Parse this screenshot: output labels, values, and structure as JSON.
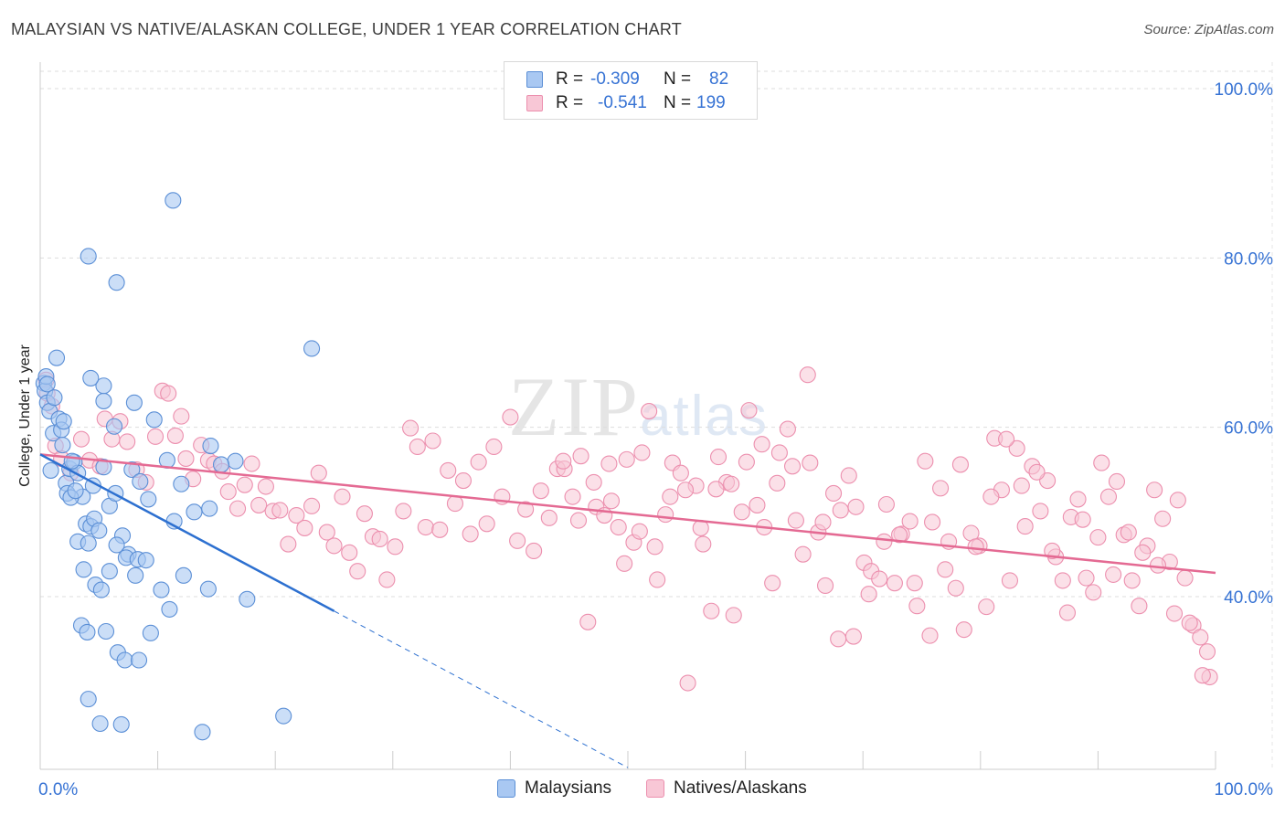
{
  "header": {
    "title": "MALAYSIAN VS NATIVE/ALASKAN COLLEGE, UNDER 1 YEAR CORRELATION CHART",
    "source": "Source: ZipAtlas.com"
  },
  "watermark": {
    "zip": "ZIP",
    "atlas": "atlas"
  },
  "legend": {
    "rows": [
      {
        "r_label": "R =",
        "r_value": "-0.309",
        "n_label": "N =",
        "n_value": "82",
        "color": "#7aa8e8"
      },
      {
        "r_label": "R =",
        "r_value": "-0.541",
        "n_label": "N =",
        "n_value": "199",
        "color": "#f4a6bf"
      }
    ]
  },
  "bottom_legend": {
    "malaysians": "Malaysians",
    "natives": "Natives/Alaskans"
  },
  "chart_data": {
    "type": "scatter",
    "title": "MALAYSIAN VS NATIVE/ALASKAN COLLEGE, UNDER 1 YEAR CORRELATION CHART",
    "xlabel": "",
    "ylabel": "College, Under 1 year",
    "xlim": [
      0,
      100
    ],
    "ylim": [
      22,
      102
    ],
    "x_tick_labels": [
      "0.0%",
      "100.0%"
    ],
    "y_ticks": [
      40,
      60,
      80,
      100
    ],
    "y_tick_labels": [
      "40.0%",
      "60.0%",
      "80.0%",
      "100.0%"
    ],
    "colors": {
      "malaysians_fill": "#a9c8f2",
      "malaysians_stroke": "#5b8fd6",
      "malaysians_line": "#2d70d0",
      "natives_fill": "#f8c7d6",
      "natives_stroke": "#ec8fae",
      "natives_line": "#e46a93"
    },
    "series": [
      {
        "name": "Malaysians",
        "r": -0.309,
        "n": 82,
        "trend": {
          "x0": 0,
          "y0": 56.8,
          "x1": 25,
          "y1": 38.3,
          "dash_to_x": 50
        },
        "points": [
          [
            0.3,
            65.2
          ],
          [
            0.4,
            64.3
          ],
          [
            0.5,
            66.0
          ],
          [
            0.6,
            62.9
          ],
          [
            0.8,
            61.9
          ],
          [
            1.1,
            59.3
          ],
          [
            1.4,
            68.2
          ],
          [
            1.6,
            61.0
          ],
          [
            1.8,
            59.7
          ],
          [
            2.0,
            60.7
          ],
          [
            0.9,
            54.9
          ],
          [
            2.2,
            53.4
          ],
          [
            2.5,
            55.1
          ],
          [
            2.9,
            55.9
          ],
          [
            3.2,
            54.6
          ],
          [
            3.6,
            51.8
          ],
          [
            3.9,
            48.6
          ],
          [
            4.3,
            48.3
          ],
          [
            4.6,
            49.2
          ],
          [
            5.0,
            47.8
          ],
          [
            2.3,
            52.2
          ],
          [
            2.6,
            51.7
          ],
          [
            3.0,
            52.5
          ],
          [
            4.5,
            53.1
          ],
          [
            5.4,
            55.3
          ],
          [
            5.9,
            50.7
          ],
          [
            6.4,
            52.2
          ],
          [
            7.0,
            47.2
          ],
          [
            7.5,
            45.0
          ],
          [
            8.1,
            42.5
          ],
          [
            3.2,
            46.5
          ],
          [
            3.7,
            43.2
          ],
          [
            4.1,
            46.3
          ],
          [
            4.7,
            41.4
          ],
          [
            5.2,
            40.8
          ],
          [
            5.9,
            43.0
          ],
          [
            6.5,
            46.1
          ],
          [
            7.3,
            44.6
          ],
          [
            8.3,
            44.4
          ],
          [
            9.0,
            44.3
          ],
          [
            3.5,
            36.6
          ],
          [
            4.0,
            35.8
          ],
          [
            5.6,
            35.9
          ],
          [
            6.6,
            33.4
          ],
          [
            7.2,
            32.5
          ],
          [
            8.4,
            32.5
          ],
          [
            9.4,
            35.7
          ],
          [
            10.3,
            40.8
          ],
          [
            11.0,
            38.5
          ],
          [
            12.2,
            42.5
          ],
          [
            4.1,
            27.9
          ],
          [
            5.1,
            25.0
          ],
          [
            6.9,
            24.9
          ],
          [
            13.8,
            24.0
          ],
          [
            20.7,
            25.9
          ],
          [
            14.3,
            40.9
          ],
          [
            17.6,
            39.7
          ],
          [
            13.1,
            50.0
          ],
          [
            14.4,
            50.4
          ],
          [
            16.6,
            56.0
          ],
          [
            10.8,
            56.1
          ],
          [
            11.4,
            48.9
          ],
          [
            12.0,
            53.3
          ],
          [
            14.5,
            57.8
          ],
          [
            15.4,
            55.6
          ],
          [
            9.7,
            60.9
          ],
          [
            8.0,
            62.9
          ],
          [
            6.3,
            60.1
          ],
          [
            5.4,
            63.1
          ],
          [
            5.4,
            64.9
          ],
          [
            4.3,
            65.8
          ],
          [
            4.1,
            80.2
          ],
          [
            6.5,
            77.1
          ],
          [
            11.3,
            86.8
          ],
          [
            23.1,
            69.3
          ],
          [
            0.6,
            65.1
          ],
          [
            1.2,
            63.5
          ],
          [
            1.9,
            57.9
          ],
          [
            2.7,
            56.0
          ],
          [
            7.8,
            55.0
          ],
          [
            8.5,
            53.6
          ],
          [
            9.2,
            51.5
          ]
        ]
      },
      {
        "name": "Natives/Alaskans",
        "r": -0.541,
        "n": 199,
        "trend": {
          "x0": 0,
          "y0": 56.8,
          "x1": 100,
          "y1": 42.8
        },
        "points": [
          [
            0.5,
            65.6
          ],
          [
            0.6,
            64.0
          ],
          [
            1.0,
            62.5
          ],
          [
            1.3,
            57.8
          ],
          [
            1.8,
            56.3
          ],
          [
            2.6,
            54.6
          ],
          [
            3.5,
            58.6
          ],
          [
            4.2,
            56.1
          ],
          [
            5.1,
            55.4
          ],
          [
            5.5,
            61.0
          ],
          [
            6.1,
            58.6
          ],
          [
            6.8,
            60.7
          ],
          [
            7.4,
            58.3
          ],
          [
            8.2,
            55.0
          ],
          [
            9.0,
            53.5
          ],
          [
            9.8,
            58.9
          ],
          [
            10.4,
            64.3
          ],
          [
            10.9,
            64.0
          ],
          [
            11.5,
            59.0
          ],
          [
            12.0,
            61.3
          ],
          [
            12.4,
            56.3
          ],
          [
            13.0,
            53.9
          ],
          [
            13.7,
            57.9
          ],
          [
            14.3,
            56.1
          ],
          [
            14.8,
            55.7
          ],
          [
            15.5,
            54.8
          ],
          [
            16.0,
            52.4
          ],
          [
            16.8,
            50.4
          ],
          [
            17.4,
            53.2
          ],
          [
            18.0,
            55.7
          ],
          [
            18.6,
            50.8
          ],
          [
            19.2,
            53.0
          ],
          [
            19.8,
            50.1
          ],
          [
            20.4,
            50.2
          ],
          [
            21.1,
            46.2
          ],
          [
            21.8,
            49.6
          ],
          [
            22.5,
            48.1
          ],
          [
            23.1,
            50.7
          ],
          [
            23.7,
            54.6
          ],
          [
            24.4,
            47.6
          ],
          [
            25.0,
            46.0
          ],
          [
            25.7,
            51.8
          ],
          [
            26.3,
            45.2
          ],
          [
            27.0,
            43.0
          ],
          [
            27.6,
            49.8
          ],
          [
            28.3,
            47.1
          ],
          [
            28.9,
            46.8
          ],
          [
            29.5,
            42.0
          ],
          [
            30.2,
            45.9
          ],
          [
            30.9,
            50.1
          ],
          [
            31.5,
            59.9
          ],
          [
            32.1,
            57.7
          ],
          [
            32.8,
            48.2
          ],
          [
            33.4,
            58.4
          ],
          [
            34.0,
            47.9
          ],
          [
            34.7,
            54.9
          ],
          [
            35.3,
            51.0
          ],
          [
            36.0,
            53.7
          ],
          [
            36.6,
            47.4
          ],
          [
            37.3,
            55.9
          ],
          [
            38.0,
            48.6
          ],
          [
            38.6,
            57.7
          ],
          [
            39.3,
            51.8
          ],
          [
            40.0,
            61.2
          ],
          [
            40.6,
            46.6
          ],
          [
            41.3,
            50.3
          ],
          [
            42.0,
            45.4
          ],
          [
            42.6,
            52.5
          ],
          [
            43.3,
            49.3
          ],
          [
            44.0,
            55.1
          ],
          [
            44.6,
            55.1
          ],
          [
            45.3,
            51.8
          ],
          [
            46.0,
            56.6
          ],
          [
            46.6,
            37.0
          ],
          [
            47.3,
            50.6
          ],
          [
            48.0,
            49.6
          ],
          [
            48.6,
            51.3
          ],
          [
            49.2,
            48.2
          ],
          [
            49.9,
            56.2
          ],
          [
            50.5,
            46.4
          ],
          [
            51.2,
            57.0
          ],
          [
            51.8,
            61.9
          ],
          [
            52.5,
            42.0
          ],
          [
            53.2,
            49.7
          ],
          [
            53.8,
            55.8
          ],
          [
            54.5,
            54.6
          ],
          [
            55.1,
            29.8
          ],
          [
            55.8,
            53.1
          ],
          [
            56.4,
            46.2
          ],
          [
            57.1,
            38.3
          ],
          [
            57.7,
            56.5
          ],
          [
            58.4,
            53.5
          ],
          [
            59.0,
            37.8
          ],
          [
            59.7,
            50.0
          ],
          [
            60.3,
            62.0
          ],
          [
            61.0,
            50.8
          ],
          [
            61.6,
            48.2
          ],
          [
            62.3,
            41.6
          ],
          [
            62.9,
            57.0
          ],
          [
            63.6,
            59.8
          ],
          [
            64.3,
            49.0
          ],
          [
            64.9,
            45.0
          ],
          [
            65.5,
            55.8
          ],
          [
            66.2,
            47.6
          ],
          [
            66.8,
            41.3
          ],
          [
            67.5,
            52.2
          ],
          [
            68.1,
            50.2
          ],
          [
            68.8,
            54.3
          ],
          [
            69.4,
            50.6
          ],
          [
            70.1,
            44.0
          ],
          [
            70.7,
            43.0
          ],
          [
            71.4,
            42.1
          ],
          [
            72.0,
            50.9
          ],
          [
            72.7,
            41.6
          ],
          [
            73.3,
            47.4
          ],
          [
            74.0,
            48.9
          ],
          [
            74.6,
            38.9
          ],
          [
            75.3,
            56.0
          ],
          [
            75.9,
            48.8
          ],
          [
            76.6,
            52.8
          ],
          [
            77.3,
            46.5
          ],
          [
            77.9,
            41.0
          ],
          [
            78.6,
            36.1
          ],
          [
            79.2,
            47.5
          ],
          [
            79.9,
            46.0
          ],
          [
            80.5,
            38.8
          ],
          [
            81.2,
            58.7
          ],
          [
            81.8,
            52.6
          ],
          [
            82.5,
            41.9
          ],
          [
            83.1,
            57.5
          ],
          [
            83.8,
            48.3
          ],
          [
            84.4,
            55.4
          ],
          [
            85.1,
            50.1
          ],
          [
            85.7,
            53.7
          ],
          [
            86.4,
            44.7
          ],
          [
            87.0,
            41.9
          ],
          [
            87.7,
            49.4
          ],
          [
            88.3,
            51.5
          ],
          [
            89.0,
            42.2
          ],
          [
            89.6,
            40.5
          ],
          [
            90.3,
            55.8
          ],
          [
            90.9,
            51.8
          ],
          [
            91.6,
            53.6
          ],
          [
            92.2,
            47.3
          ],
          [
            92.9,
            41.9
          ],
          [
            93.5,
            38.9
          ],
          [
            94.2,
            46.0
          ],
          [
            94.8,
            52.6
          ],
          [
            95.5,
            49.2
          ],
          [
            96.1,
            44.1
          ],
          [
            96.8,
            51.4
          ],
          [
            97.4,
            42.2
          ],
          [
            98.1,
            36.6
          ],
          [
            98.7,
            35.2
          ],
          [
            99.3,
            33.5
          ],
          [
            99.5,
            30.5
          ],
          [
            98.9,
            30.7
          ],
          [
            97.8,
            36.9
          ],
          [
            96.5,
            38.0
          ],
          [
            95.1,
            43.7
          ],
          [
            93.8,
            45.2
          ],
          [
            92.6,
            47.6
          ],
          [
            91.3,
            42.6
          ],
          [
            90.0,
            47.0
          ],
          [
            88.7,
            49.1
          ],
          [
            87.4,
            38.1
          ],
          [
            86.1,
            45.4
          ],
          [
            84.8,
            54.7
          ],
          [
            83.5,
            53.1
          ],
          [
            82.2,
            58.6
          ],
          [
            80.9,
            51.8
          ],
          [
            79.6,
            45.9
          ],
          [
            78.3,
            55.6
          ],
          [
            77.0,
            43.2
          ],
          [
            75.7,
            35.4
          ],
          [
            74.4,
            41.6
          ],
          [
            73.1,
            47.3
          ],
          [
            71.8,
            46.5
          ],
          [
            70.5,
            40.3
          ],
          [
            69.2,
            35.3
          ],
          [
            67.9,
            35.0
          ],
          [
            66.6,
            48.8
          ],
          [
            65.3,
            66.2
          ],
          [
            64.0,
            55.4
          ],
          [
            62.7,
            53.4
          ],
          [
            61.4,
            58.0
          ],
          [
            60.1,
            55.9
          ],
          [
            58.8,
            53.3
          ],
          [
            57.5,
            52.7
          ],
          [
            56.2,
            48.1
          ],
          [
            54.9,
            52.6
          ],
          [
            53.6,
            51.8
          ],
          [
            52.3,
            45.9
          ],
          [
            51.0,
            47.7
          ],
          [
            49.7,
            43.9
          ],
          [
            48.4,
            55.7
          ],
          [
            47.1,
            53.5
          ],
          [
            45.8,
            49.0
          ],
          [
            44.5,
            56.0
          ]
        ]
      }
    ]
  }
}
